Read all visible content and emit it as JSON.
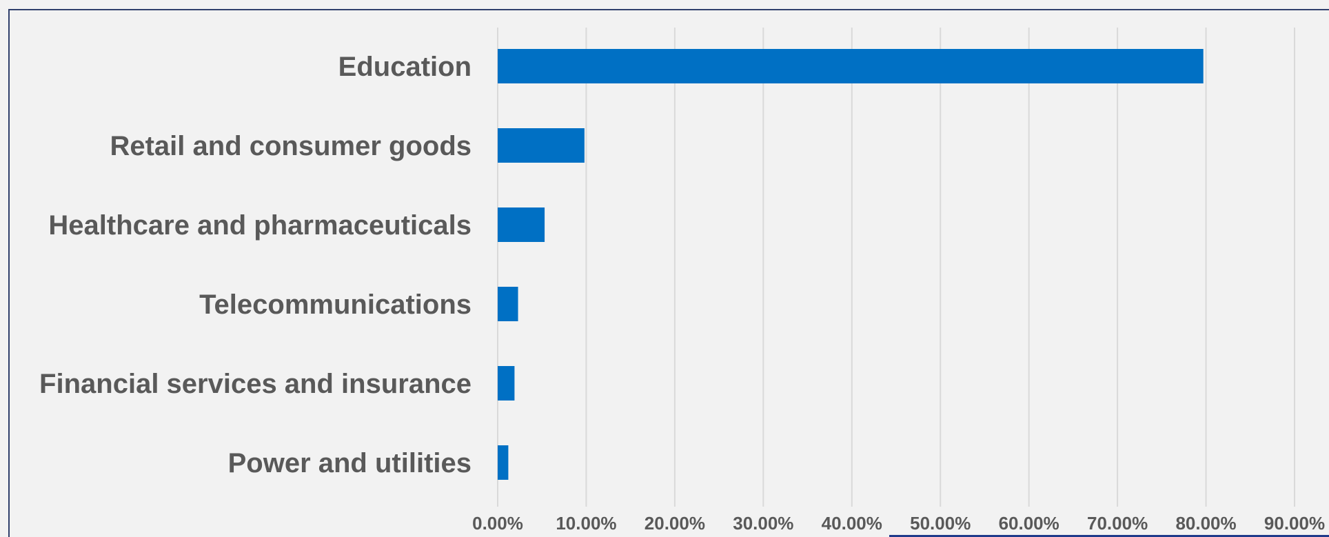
{
  "chart_data": {
    "type": "bar",
    "orientation": "horizontal",
    "categories": [
      "Education",
      "Retail and consumer goods",
      "Healthcare and pharmaceuticals",
      "Telecommunications",
      "Financial services and insurance",
      "Power and utilities"
    ],
    "values": [
      79.7,
      9.8,
      5.3,
      2.3,
      1.9,
      1.2
    ],
    "value_unit": "%",
    "xlim": [
      0,
      90
    ],
    "xticks": [
      0,
      10,
      20,
      30,
      40,
      50,
      60,
      70,
      80,
      90
    ],
    "xtick_labels": [
      "0.00%",
      "10.00%",
      "20.00%",
      "30.00%",
      "40.00%",
      "50.00%",
      "60.00%",
      "70.00%",
      "80.00%",
      "90.00%"
    ],
    "title": "",
    "xlabel": "",
    "ylabel": "",
    "grid": "vertical",
    "legend": "none",
    "colors": {
      "bar": "#0070c4",
      "grid": "#d9d9d9",
      "text": "#595959",
      "background": "#f2f2f2",
      "frame": "#2f3f6b"
    }
  }
}
